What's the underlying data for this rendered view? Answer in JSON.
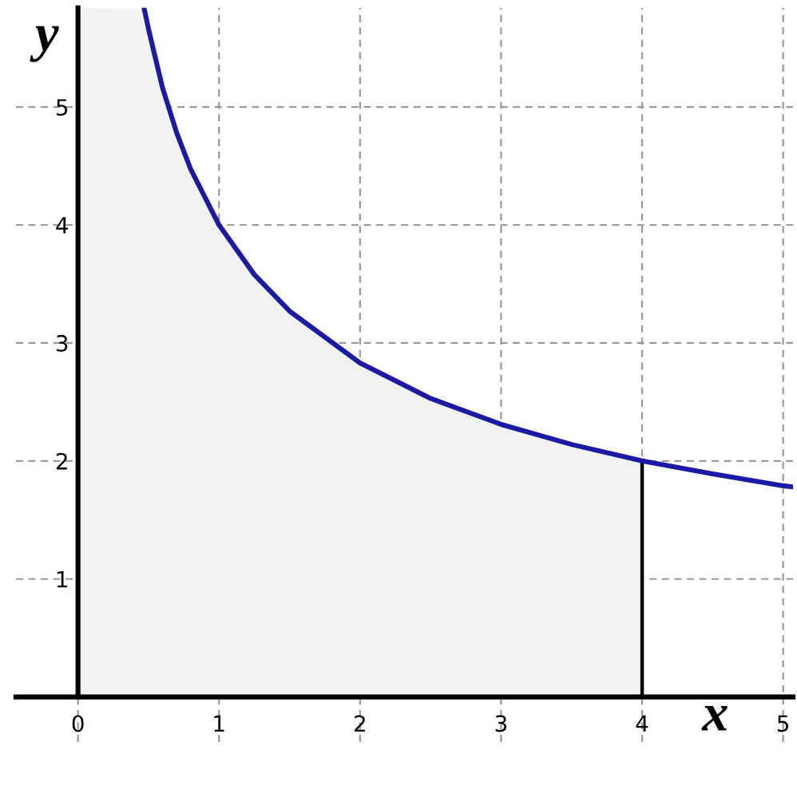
{
  "chart_data": {
    "type": "line",
    "xlabel": "x",
    "ylabel": "y",
    "xlim": [
      -0.44,
      5.07
    ],
    "ylim": [
      -0.38,
      5.84
    ],
    "xticks": [
      0,
      1,
      2,
      3,
      4,
      5
    ],
    "yticks": [
      1,
      2,
      3,
      4,
      5
    ],
    "grid": true,
    "line_style": "solid",
    "marker": "none",
    "series": [
      {
        "type": "area",
        "color": "#f2f2f2",
        "x": [
          0,
          0.47,
          0.5,
          0.6,
          0.7,
          0.8,
          1,
          1.25,
          1.5,
          2,
          2.5,
          3,
          3.5,
          4
        ],
        "values": [
          5.84,
          5.83,
          5.66,
          5.16,
          4.78,
          4.47,
          4,
          3.58,
          3.27,
          2.83,
          2.53,
          2.31,
          2.14,
          2
        ]
      },
      {
        "color": "#000000",
        "x": [
          4,
          4
        ],
        "values": [
          0,
          2
        ]
      },
      {
        "color": "#1a1aa6",
        "x": [
          0.47,
          0.5,
          0.6,
          0.7,
          0.8,
          1,
          1.25,
          1.5,
          2,
          2.5,
          3,
          3.5,
          4,
          4.5,
          5,
          5.07
        ],
        "values": [
          5.83,
          5.66,
          5.16,
          4.78,
          4.47,
          4,
          3.58,
          3.27,
          2.83,
          2.53,
          2.31,
          2.14,
          2,
          1.89,
          1.79,
          1.78
        ]
      }
    ]
  }
}
